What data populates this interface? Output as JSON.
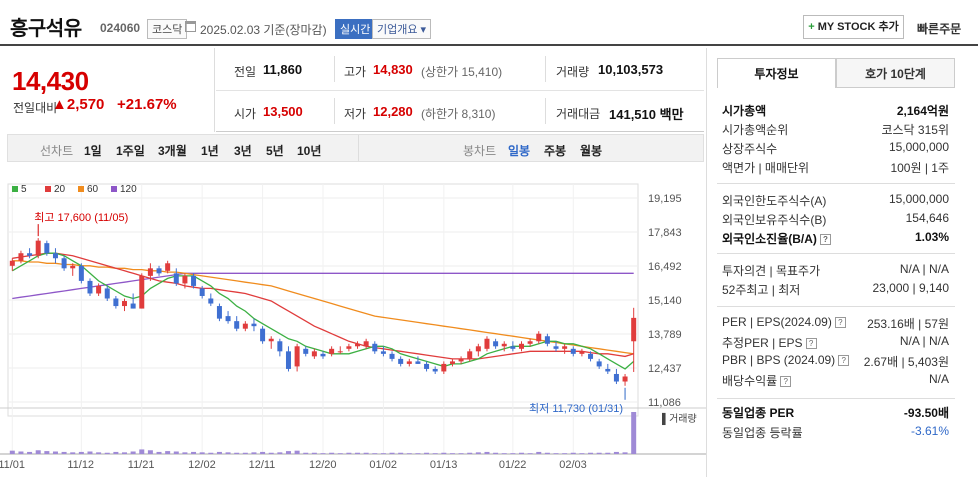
{
  "header": {
    "name": "흥구석유",
    "code": "024060",
    "market": "코스닥",
    "date": "2025.02.03 기준(장마감)",
    "realtime": "실시간",
    "company": "기업개요 ▾",
    "mystock": "MY STOCK 추가",
    "quick_order": "빠른주문"
  },
  "price": {
    "current": "14,430",
    "change_label": "전일대비",
    "change": "▲2,570",
    "change_pct": "+21.67%",
    "color_up": "#d60000"
  },
  "quote": {
    "prev_label": "전일",
    "prev": "11,860",
    "high_label": "고가",
    "high": "14,830",
    "upper_limit": "(상한가 15,410)",
    "volume_label": "거래량",
    "volume": "10,103,573",
    "open_label": "시가",
    "open": "13,500",
    "low_label": "저가",
    "low": "12,280",
    "lower_limit": "(하한가 8,310)",
    "amount_label": "거래대금",
    "amount": "141,510 백만"
  },
  "toolbar": {
    "line_chart": "선차트",
    "periods": [
      "1일",
      "1주일",
      "3개월",
      "1년",
      "3년",
      "5년",
      "10년"
    ],
    "candle_chart": "봉차트",
    "candle_periods": [
      "일봉",
      "주봉",
      "월봉"
    ],
    "active_candle": "일봉"
  },
  "chart_data": {
    "type": "candlestick",
    "legend": [
      {
        "label": "5",
        "color": "#3cb043"
      },
      {
        "label": "20",
        "color": "#e03c3c"
      },
      {
        "label": "60",
        "color": "#f08c1e"
      },
      {
        "label": "120",
        "color": "#8e57c8"
      }
    ],
    "y_ticks": [
      "19,195",
      "17,843",
      "16,492",
      "15,140",
      "13,789",
      "12,437",
      "11,086"
    ],
    "ylim": [
      11086,
      19195
    ],
    "x_ticks": [
      "11/01",
      "11/12",
      "11/21",
      "12/02",
      "12/11",
      "12/20",
      "01/02",
      "01/13",
      "01/22",
      "02/03"
    ],
    "high_annotation": "최고 17,600 (11/05)",
    "low_annotation": "최저 11,730 (01/31)",
    "volume_label": "거래량",
    "candles": [
      [
        16500,
        16800,
        16300,
        16700
      ],
      [
        16700,
        17100,
        16600,
        17000
      ],
      [
        17000,
        17200,
        16800,
        16900
      ],
      [
        16900,
        17600,
        16800,
        17500
      ],
      [
        17400,
        17500,
        16900,
        17000
      ],
      [
        17000,
        17200,
        16600,
        16800
      ],
      [
        16800,
        16900,
        16300,
        16400
      ],
      [
        16400,
        16600,
        16100,
        16500
      ],
      [
        16500,
        16600,
        15800,
        15900
      ],
      [
        15900,
        16000,
        15300,
        15400
      ],
      [
        15400,
        15800,
        15300,
        15700
      ],
      [
        15600,
        15700,
        15100,
        15200
      ],
      [
        15200,
        15300,
        14800,
        14900
      ],
      [
        14900,
        15200,
        14700,
        15100
      ],
      [
        15000,
        15400,
        14800,
        14800
      ],
      [
        14800,
        16200,
        14800,
        16100
      ],
      [
        16100,
        16600,
        15900,
        16400
      ],
      [
        16400,
        16500,
        16100,
        16200
      ],
      [
        16300,
        16700,
        16200,
        16600
      ],
      [
        16200,
        16400,
        15700,
        15800
      ],
      [
        15800,
        16200,
        15600,
        16100
      ],
      [
        16100,
        16200,
        15600,
        15700
      ],
      [
        15600,
        15700,
        15200,
        15300
      ],
      [
        15200,
        15400,
        14900,
        15000
      ],
      [
        14900,
        15000,
        14300,
        14400
      ],
      [
        14500,
        14700,
        14200,
        14300
      ],
      [
        14300,
        14500,
        13900,
        14000
      ],
      [
        14000,
        14300,
        13900,
        14200
      ],
      [
        14200,
        14400,
        13900,
        14100
      ],
      [
        14000,
        14100,
        13400,
        13500
      ],
      [
        13500,
        13700,
        13200,
        13600
      ],
      [
        13500,
        13600,
        12900,
        13100
      ],
      [
        13100,
        13300,
        12300,
        12400
      ],
      [
        12500,
        13400,
        12300,
        13300
      ],
      [
        13200,
        13300,
        12900,
        13000
      ],
      [
        12900,
        13200,
        12800,
        13100
      ],
      [
        13000,
        13100,
        12800,
        12900
      ],
      [
        13000,
        13300,
        12900,
        13200
      ],
      [
        13100,
        13300,
        13000,
        13100
      ],
      [
        13200,
        13400,
        13100,
        13300
      ],
      [
        13300,
        13500,
        13200,
        13400
      ],
      [
        13300,
        13600,
        13200,
        13500
      ],
      [
        13400,
        13500,
        13000,
        13100
      ],
      [
        13100,
        13300,
        12900,
        13000
      ],
      [
        13000,
        13100,
        12700,
        12800
      ],
      [
        12800,
        12900,
        12500,
        12600
      ],
      [
        12600,
        12800,
        12500,
        12700
      ],
      [
        12700,
        12900,
        12600,
        12600
      ],
      [
        12600,
        12700,
        12300,
        12400
      ],
      [
        12400,
        12500,
        12200,
        12300
      ],
      [
        12300,
        12700,
        12200,
        12600
      ],
      [
        12600,
        12800,
        12500,
        12700
      ],
      [
        12700,
        12900,
        12600,
        12800
      ],
      [
        12800,
        13200,
        12700,
        13100
      ],
      [
        13100,
        13400,
        12900,
        13300
      ],
      [
        13200,
        13700,
        13100,
        13600
      ],
      [
        13500,
        13600,
        13200,
        13300
      ],
      [
        13300,
        13500,
        13100,
        13400
      ],
      [
        13300,
        13500,
        13100,
        13200
      ],
      [
        13200,
        13500,
        13100,
        13400
      ],
      [
        13400,
        13600,
        13300,
        13500
      ],
      [
        13500,
        13900,
        13400,
        13800
      ],
      [
        13700,
        13800,
        13300,
        13400
      ],
      [
        13300,
        13500,
        13100,
        13200
      ],
      [
        13200,
        13400,
        13000,
        13300
      ],
      [
        13200,
        13300,
        12900,
        13000
      ],
      [
        13000,
        13200,
        12900,
        13100
      ],
      [
        13000,
        13100,
        12700,
        12800
      ],
      [
        12700,
        12800,
        12400,
        12500
      ],
      [
        12400,
        12600,
        12200,
        12300
      ],
      [
        12200,
        12400,
        11800,
        11900
      ],
      [
        11900,
        12200,
        11730,
        12100
      ],
      [
        13500,
        14830,
        12280,
        14430
      ]
    ],
    "ma5": [
      16300,
      16500,
      16700,
      16900,
      17000,
      17000,
      16900,
      16700,
      16500,
      16200,
      15900,
      15700,
      15500,
      15300,
      15200,
      15300,
      15600,
      15800,
      16000,
      16100,
      16100,
      16100,
      15900,
      15700,
      15400,
      15200,
      14900,
      14700,
      14400,
      14200,
      14000,
      13800,
      13600,
      13500,
      13300,
      13200,
      13100,
      13000,
      13000,
      13000,
      13100,
      13200,
      13300,
      13300,
      13200,
      13000,
      12900,
      12800,
      12700,
      12600,
      12500,
      12600,
      12600,
      12700,
      12800,
      13000,
      13100,
      13200,
      13300,
      13300,
      13300,
      13400,
      13500,
      13500,
      13400,
      13400,
      13300,
      13200,
      13000,
      12800,
      12600,
      12400,
      12700
    ],
    "ma20": [
      16800,
      16850,
      16900,
      16950,
      17000,
      17000,
      16950,
      16900,
      16800,
      16700,
      16600,
      16500,
      16400,
      16300,
      16200,
      16100,
      16000,
      15900,
      15850,
      15800,
      15700,
      15650,
      15600,
      15600,
      15550,
      15500,
      15450,
      15400,
      15300,
      15200,
      15100,
      14900,
      14700,
      14500,
      14300,
      14100,
      13950,
      13800,
      13650,
      13500,
      13400,
      13300,
      13250,
      13200,
      13150,
      13100,
      13050,
      13000,
      12950,
      12900,
      12850,
      12800,
      12800,
      12800,
      12800,
      12850,
      12900,
      12950,
      13000,
      13050,
      13100,
      13100,
      13100,
      13100,
      13100,
      13100,
      13100,
      13050,
      13000,
      13000,
      12950,
      12900,
      13000
    ],
    "ma60": [
      16700,
      16700,
      16650,
      16650,
      16600,
      16600,
      16550,
      16550,
      16500,
      16500,
      16450,
      16450,
      16400,
      16400,
      16350,
      16350,
      16300,
      16300,
      16250,
      16250,
      16200,
      16150,
      16100,
      16050,
      16000,
      15950,
      15900,
      15850,
      15800,
      15750,
      15700,
      15600,
      15500,
      15400,
      15300,
      15200,
      15100,
      15000,
      14900,
      14800,
      14700,
      14600,
      14500,
      14450,
      14400,
      14350,
      14300,
      14250,
      14200,
      14150,
      14100,
      14050,
      14000,
      13950,
      13900,
      13850,
      13800,
      13750,
      13700,
      13650,
      13600,
      13550,
      13500,
      13450,
      13400,
      13350,
      13300,
      13250,
      13200,
      13150,
      13100,
      13050,
      13000
    ],
    "ma120": [
      15200,
      15250,
      15300,
      15350,
      15400,
      15450,
      15500,
      15550,
      15600,
      15650,
      15700,
      15750,
      15800,
      15850,
      15900,
      15950,
      16000,
      16050,
      16100,
      16150,
      16200,
      16200,
      16200,
      16200,
      16200,
      16200,
      16200,
      16200,
      16200,
      16200,
      16200,
      16200,
      16200,
      16200,
      16200,
      16200,
      16200,
      16200,
      16200,
      16200,
      16200,
      16200,
      16200,
      16200,
      16200,
      16200,
      16200,
      16200,
      16200,
      16200,
      16200,
      16200,
      16200,
      16200,
      16200,
      16200,
      16200,
      16200,
      16200,
      16200,
      16200,
      16200,
      16200,
      16200,
      16200,
      16200,
      16200,
      16200,
      16200,
      16200,
      16200,
      16200,
      16200
    ],
    "volume_max": 10103573,
    "volumes": [
      800000,
      600000,
      500000,
      900000,
      700000,
      600000,
      500000,
      400000,
      500000,
      600000,
      400000,
      300000,
      500000,
      400000,
      600000,
      1100000,
      900000,
      500000,
      700000,
      600000,
      400000,
      500000,
      400000,
      300000,
      500000,
      400000,
      300000,
      300000,
      400000,
      500000,
      300000,
      400000,
      700000,
      800000,
      300000,
      300000,
      200000,
      300000,
      200000,
      300000,
      300000,
      300000,
      200000,
      200000,
      300000,
      300000,
      200000,
      200000,
      300000,
      200000,
      300000,
      200000,
      200000,
      300000,
      400000,
      500000,
      300000,
      200000,
      200000,
      300000,
      200000,
      500000,
      300000,
      200000,
      200000,
      300000,
      200000,
      300000,
      300000,
      300000,
      500000,
      400000,
      10103573
    ]
  },
  "right_panel": {
    "tab_info": "투자정보",
    "tab_orderbook": "호가 10단계",
    "rows": {
      "market_cap_label": "시가총액",
      "market_cap": "2,164억원",
      "rank_label": "시가총액순위",
      "rank": "코스닥 315위",
      "shares_label": "상장주식수",
      "shares": "15,000,000",
      "par_label": "액면가 | 매매단위",
      "par": "100원 | 1주",
      "foreign_limit_label": "외국인한도주식수(A)",
      "foreign_limit": "15,000,000",
      "foreign_hold_label": "외국인보유주식수(B)",
      "foreign_hold": "154,646",
      "foreign_ratio_label": "외국인소진율(B/A)",
      "foreign_ratio": "1.03%",
      "opinion_label": "투자의견 | 목표주가",
      "opinion": "N/A | N/A",
      "week52_label": "52주최고 | 최저",
      "week52": "23,000 | 9,140",
      "per_label": "PER | EPS(2024.09)",
      "per": "253.16배 | 57원",
      "est_per_label": "추정PER | EPS",
      "est_per": "N/A | N/A",
      "pbr_label": "PBR | BPS (2024.09)",
      "pbr": "2.67배 | 5,403원",
      "dividend_label": "배당수익률",
      "dividend": "N/A",
      "sector_per_label": "동일업종 PER",
      "sector_per": "-93.50배",
      "sector_rate_label": "동일업종 등락률",
      "sector_rate": "-3.61%"
    }
  }
}
